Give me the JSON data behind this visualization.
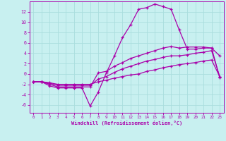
{
  "xlabel": "Windchill (Refroidissement éolien,°C)",
  "background_color": "#c8f0f0",
  "line_color": "#aa00aa",
  "grid_color": "#aadddd",
  "xlim": [
    -0.5,
    23.5
  ],
  "ylim": [
    -7.5,
    14.0
  ],
  "yticks": [
    -6,
    -4,
    -2,
    0,
    2,
    4,
    6,
    8,
    10,
    12
  ],
  "xticks": [
    0,
    1,
    2,
    3,
    4,
    5,
    6,
    7,
    8,
    9,
    10,
    11,
    12,
    13,
    14,
    15,
    16,
    17,
    18,
    19,
    20,
    21,
    22,
    23
  ],
  "hours": [
    0,
    1,
    2,
    3,
    4,
    5,
    6,
    7,
    8,
    9,
    10,
    11,
    12,
    13,
    14,
    15,
    16,
    17,
    18,
    19,
    20,
    21,
    22,
    23
  ],
  "line1": [
    -1.5,
    -1.5,
    -2.3,
    -2.7,
    -2.7,
    -2.7,
    -2.7,
    -6.2,
    -3.5,
    0.2,
    3.5,
    7.0,
    9.5,
    12.5,
    12.8,
    13.5,
    13.0,
    12.5,
    8.5,
    4.8,
    4.8,
    5.0,
    5.0,
    -0.7
  ],
  "line2": [
    -1.5,
    -1.5,
    -2.0,
    -2.5,
    -2.5,
    -2.5,
    -2.5,
    -2.5,
    0.2,
    0.5,
    1.5,
    2.2,
    3.0,
    3.5,
    4.0,
    4.5,
    5.0,
    5.3,
    5.0,
    5.2,
    5.2,
    5.2,
    5.0,
    3.5
  ],
  "line3": [
    -1.5,
    -1.5,
    -1.8,
    -2.2,
    -2.2,
    -2.2,
    -2.2,
    -2.2,
    -1.0,
    -0.5,
    0.3,
    1.0,
    1.5,
    2.0,
    2.5,
    2.8,
    3.2,
    3.5,
    3.5,
    3.7,
    4.0,
    4.2,
    4.5,
    -0.5
  ],
  "line4": [
    -1.5,
    -1.5,
    -1.7,
    -2.0,
    -2.0,
    -2.0,
    -2.0,
    -2.0,
    -1.5,
    -1.2,
    -0.8,
    -0.5,
    -0.2,
    0.0,
    0.5,
    0.8,
    1.2,
    1.5,
    1.8,
    2.0,
    2.2,
    2.5,
    2.7,
    -0.5
  ]
}
